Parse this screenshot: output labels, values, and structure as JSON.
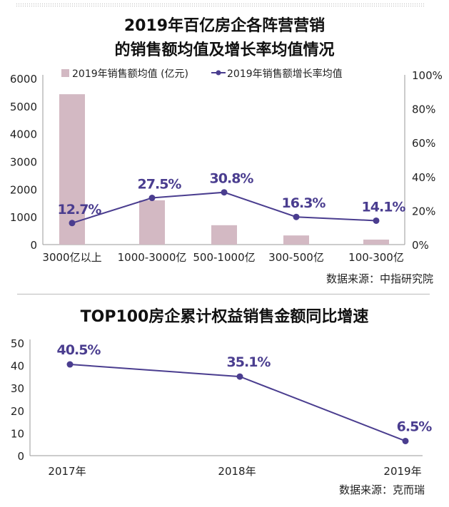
{
  "chart_data": [
    {
      "type": "bar+line",
      "title": "2019年百亿房企各阵营营销的销售额均值及增长率均值情况",
      "title_lines": [
        "2019年百亿房企各阵营营销",
        "的销售额均值及增长率均值情况"
      ],
      "categories": [
        "3000亿以上",
        "1000-3000亿",
        "500-1000亿",
        "300-500亿",
        "100-300亿"
      ],
      "series": [
        {
          "name": "2019年销售额均值 (亿元)",
          "type": "bar",
          "axis": "left",
          "values": [
            5430,
            1600,
            700,
            330,
            180
          ],
          "color": "#d3b9c3"
        },
        {
          "name": "2019年销售额增长率均值",
          "type": "line",
          "axis": "right",
          "values": [
            12.7,
            27.5,
            30.8,
            16.3,
            14.1
          ],
          "data_labels": [
            "12.7%",
            "27.5%",
            "30.8%",
            "16.3%",
            "14.1%"
          ],
          "color": "#4a3d8f"
        }
      ],
      "y_left": {
        "ylim": [
          0,
          6000
        ],
        "ticks": [
          "0",
          "1000",
          "2000",
          "3000",
          "4000",
          "5000",
          "6000"
        ]
      },
      "y_right": {
        "ylim": [
          0,
          100
        ],
        "ticks": [
          "0%",
          "20%",
          "40%",
          "60%",
          "80%",
          "100%"
        ]
      },
      "legend": "top",
      "grid": false,
      "source": "数据来源：中指研究院"
    },
    {
      "type": "line",
      "title": "TOP100房企累计权益销售金额同比增速",
      "categories": [
        "2017年",
        "2018年",
        "2019年"
      ],
      "series": [
        {
          "type": "line",
          "values": [
            40.5,
            35.1,
            6.5
          ],
          "data_labels": [
            "40.5%",
            "35.1%",
            "6.5%"
          ],
          "color": "#4a3d8f"
        }
      ],
      "ylim": [
        0,
        50
      ],
      "y_ticks": [
        "0",
        "10",
        "20",
        "30",
        "40",
        "50"
      ],
      "grid": false,
      "source": "数据来源：克而瑞"
    }
  ]
}
